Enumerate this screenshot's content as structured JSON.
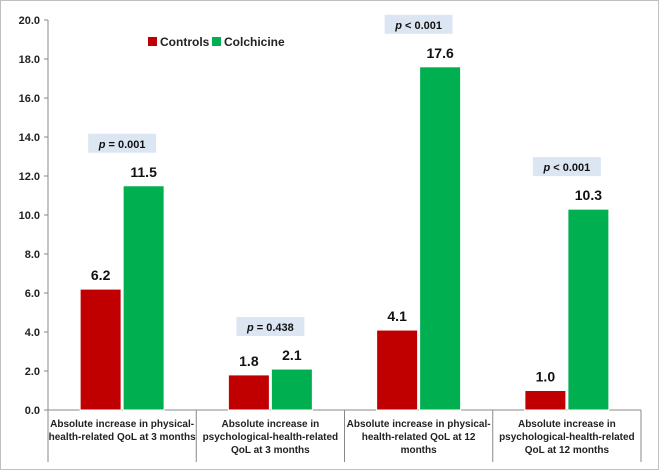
{
  "chart_data": {
    "type": "bar",
    "categories": [
      [
        "Absolute increase in physical-",
        "health-related QoL at 3 months"
      ],
      [
        "Absolute increase in",
        "psychological-health-related",
        "QoL at 3 months"
      ],
      [
        "Absolute increase in physical-",
        "health-related QoL at 12",
        "months"
      ],
      [
        "Absolute increase in",
        "psychological-health-related",
        "QoL at 12 months"
      ]
    ],
    "series": [
      {
        "name": "Controls",
        "color": "#c00000",
        "values": [
          6.2,
          1.8,
          4.1,
          1.0
        ],
        "labels": [
          "6.2",
          "1.8",
          "4.1",
          "1.0"
        ]
      },
      {
        "name": "Colchicine",
        "color": "#00b050",
        "values": [
          11.5,
          2.1,
          17.6,
          10.3
        ],
        "labels": [
          "11.5",
          "2.1",
          "17.6",
          "10.3"
        ]
      }
    ],
    "p_values": [
      {
        "prefix": "p",
        "text": " = 0.001"
      },
      {
        "prefix": "p",
        "text": " = 0.438"
      },
      {
        "prefix": "p",
        "text": " < 0.001"
      },
      {
        "prefix": "p",
        "text": " < 0.001"
      }
    ],
    "ylim": [
      0,
      20
    ],
    "yticks": [
      "0.0",
      "2.0",
      "4.0",
      "6.0",
      "8.0",
      "10.0",
      "12.0",
      "14.0",
      "16.0",
      "18.0",
      "20.0"
    ],
    "legend_position": "top-left",
    "grid": false,
    "title": "",
    "xlabel": "",
    "ylabel": ""
  }
}
